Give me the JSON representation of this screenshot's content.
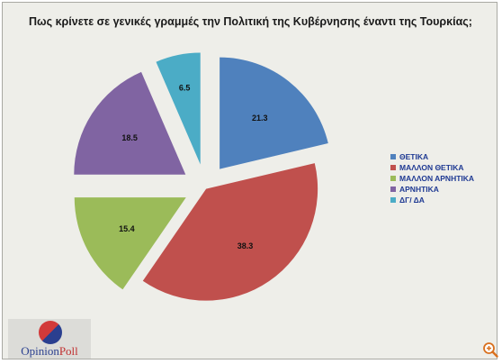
{
  "chart_data": {
    "type": "pie",
    "title": "Πως κρίνετε σε γενικές γραμμές την Πολιτική της Κυβέρνησης έναντι της Τουρκίας;",
    "categories": [
      "ΘΕΤΙΚΑ",
      "ΜΑΛΛΟΝ ΘΕΤΙΚΑ",
      "ΜΑΛΛΟΝ ΑΡΝΗΤΙΚΑ",
      "ΑΡΝΗΤΙΚΑ",
      "ΔΓ/ ΔΑ"
    ],
    "values": [
      21.3,
      38.3,
      15.4,
      18.5,
      6.5
    ],
    "value_labels": [
      "21.3",
      "38.3",
      "15.4",
      "18.5",
      "6.5"
    ],
    "colors": [
      "#4f81bd",
      "#c0504d",
      "#9bbb59",
      "#8064a2",
      "#4bacc6"
    ],
    "legend_position": "right",
    "exploded": true
  },
  "logo": {
    "text_opinion": "Opinion",
    "text_poll": "Poll"
  },
  "icons": {
    "zoom": "zoom-in-icon"
  }
}
